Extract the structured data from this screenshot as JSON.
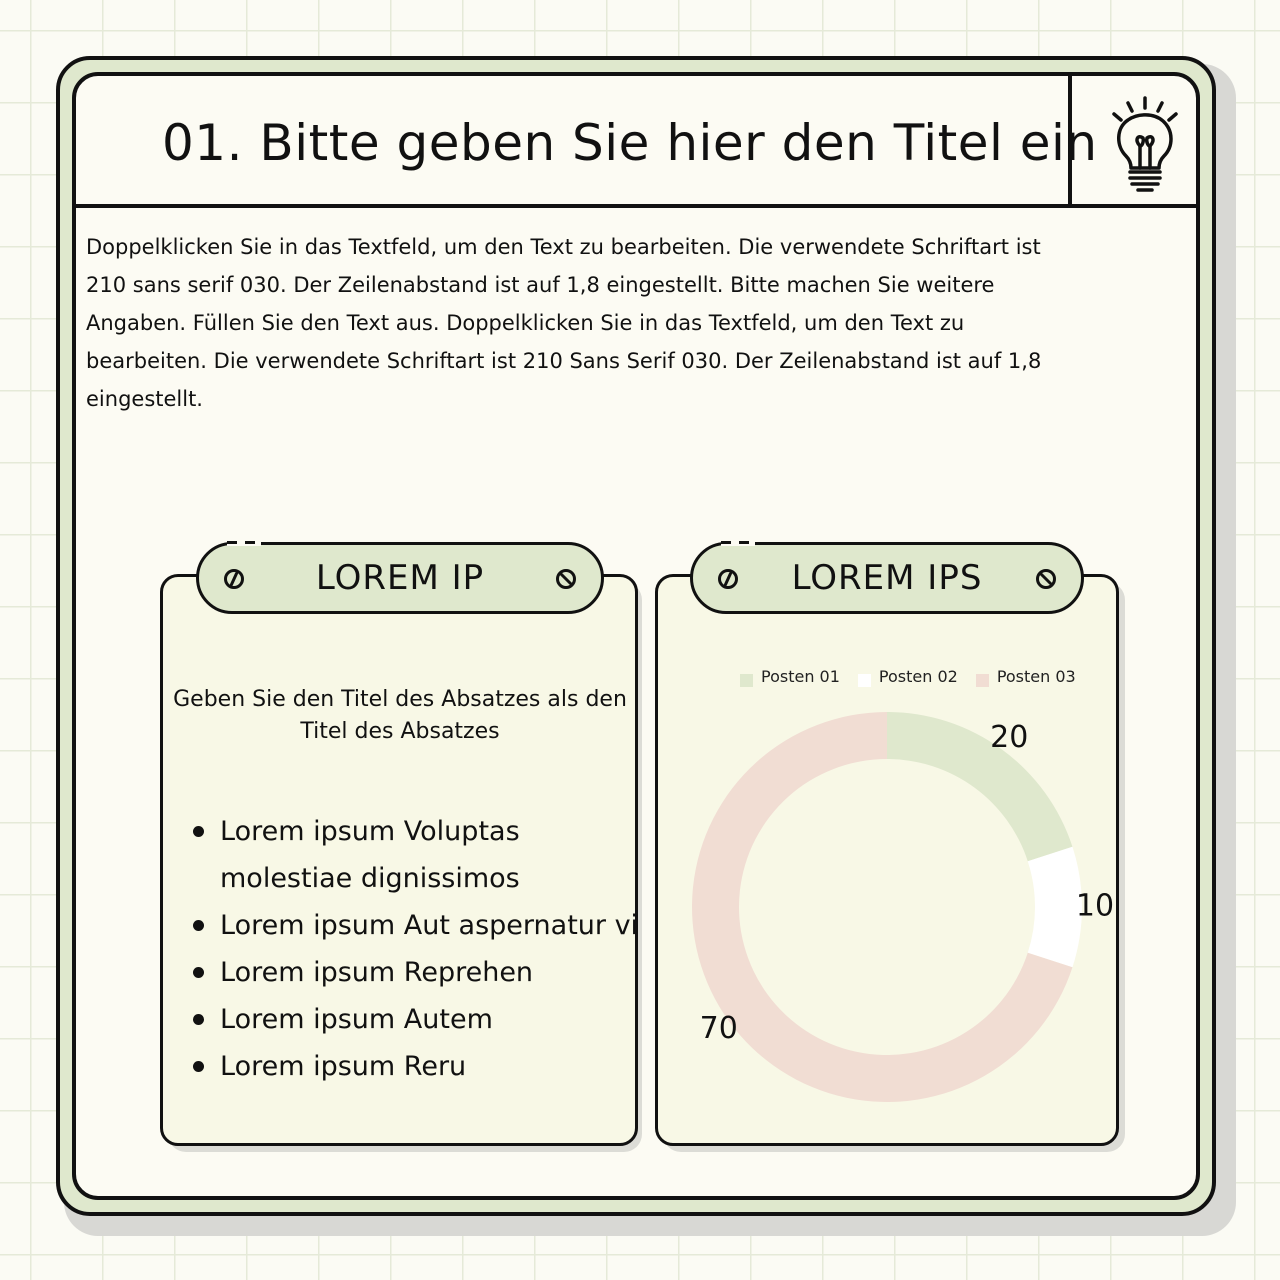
{
  "header": {
    "title": "01. Bitte geben Sie hier den Titel ein"
  },
  "intro_text": "Doppelklicken Sie in das Textfeld, um den Text zu bearbeiten. Die verwendete Schriftart ist 210 sans serif 030. Der Zeilenabstand ist auf 1,8 eingestellt. Bitte machen Sie weitere Angaben. Füllen Sie den Text aus. Doppelklicken Sie in das Textfeld, um den Text zu bearbeiten. Die verwendete Schriftart ist 210 Sans Serif 030. Der Zeilenabstand ist auf 1,8 eingestellt.",
  "card_left": {
    "label": "LOREM IP",
    "paragraph_title": "Geben Sie den Titel des Absatzes als den Titel des Absatzes",
    "bullets": [
      "Lorem ipsum Voluptas molestiae dignissimos",
      "Lorem ipsum Aut aspernatur vi",
      "Lorem ipsum Reprehen",
      "Lorem ipsum Autem",
      "Lorem ipsum Reru"
    ]
  },
  "card_right": {
    "label": "LOREM IPS"
  },
  "colors": {
    "accent_green": "#dfe8cd",
    "posten_01": "#dfe8cd",
    "posten_02": "#ffffff",
    "posten_03": "#f1ddd3"
  },
  "chart_data": {
    "type": "pie",
    "variant": "donut",
    "legend_position": "top",
    "labels": [
      "Posten 01",
      "Posten 02",
      "Posten 03"
    ],
    "values": [
      20,
      10,
      70
    ],
    "colors": [
      "#dfe8cd",
      "#ffffff",
      "#f1ddd3"
    ]
  }
}
